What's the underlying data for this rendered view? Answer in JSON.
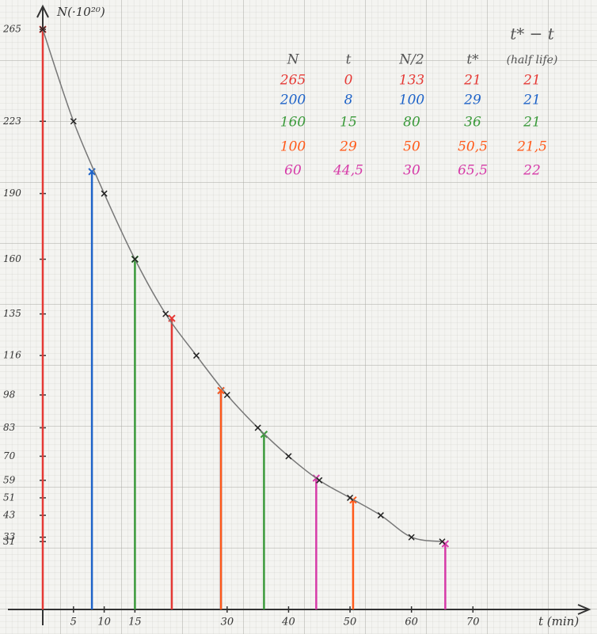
{
  "chart_data": {
    "type": "line",
    "y_label": "N(·10²⁰)",
    "x_label": "t (min)",
    "x": [
      0,
      5,
      10,
      15,
      20,
      25,
      30,
      35,
      40,
      45,
      50,
      55,
      60,
      65
    ],
    "values": [
      265,
      223,
      190,
      160,
      135,
      116,
      98,
      83,
      70,
      59,
      51,
      43,
      33,
      31
    ],
    "color": "#222222",
    "xlim": [
      0,
      88
    ],
    "ylim": [
      0,
      273
    ],
    "xticks": [
      5,
      10,
      15,
      30,
      40,
      50,
      60,
      70
    ],
    "yticks": [
      265,
      223,
      190,
      160,
      135,
      116,
      98,
      83,
      70,
      59,
      51,
      43,
      33,
      31
    ],
    "grid": true,
    "table": {
      "headers": [
        "N",
        "t",
        "N/2",
        "t*",
        "t* − t"
      ],
      "note": "(half life)",
      "rows": [
        {
          "color": "#e53935",
          "cells": [
            265,
            0,
            133,
            21,
            21
          ]
        },
        {
          "color": "#1e63c8",
          "cells": [
            200,
            8,
            100,
            29,
            21
          ]
        },
        {
          "color": "#3a9a3a",
          "cells": [
            160,
            15,
            80,
            36,
            21
          ]
        },
        {
          "color": "#ff5a1a",
          "cells": [
            100,
            29,
            50,
            {
              "value": 50.5,
              "label": "50,5"
            },
            {
              "value": 21.5,
              "label": "21,5"
            }
          ]
        },
        {
          "color": "#d63aa8",
          "cells": [
            60,
            {
              "value": 44.5,
              "label": "44,5"
            },
            30,
            {
              "value": 65.5,
              "label": "65,5"
            },
            22
          ]
        }
      ]
    }
  }
}
